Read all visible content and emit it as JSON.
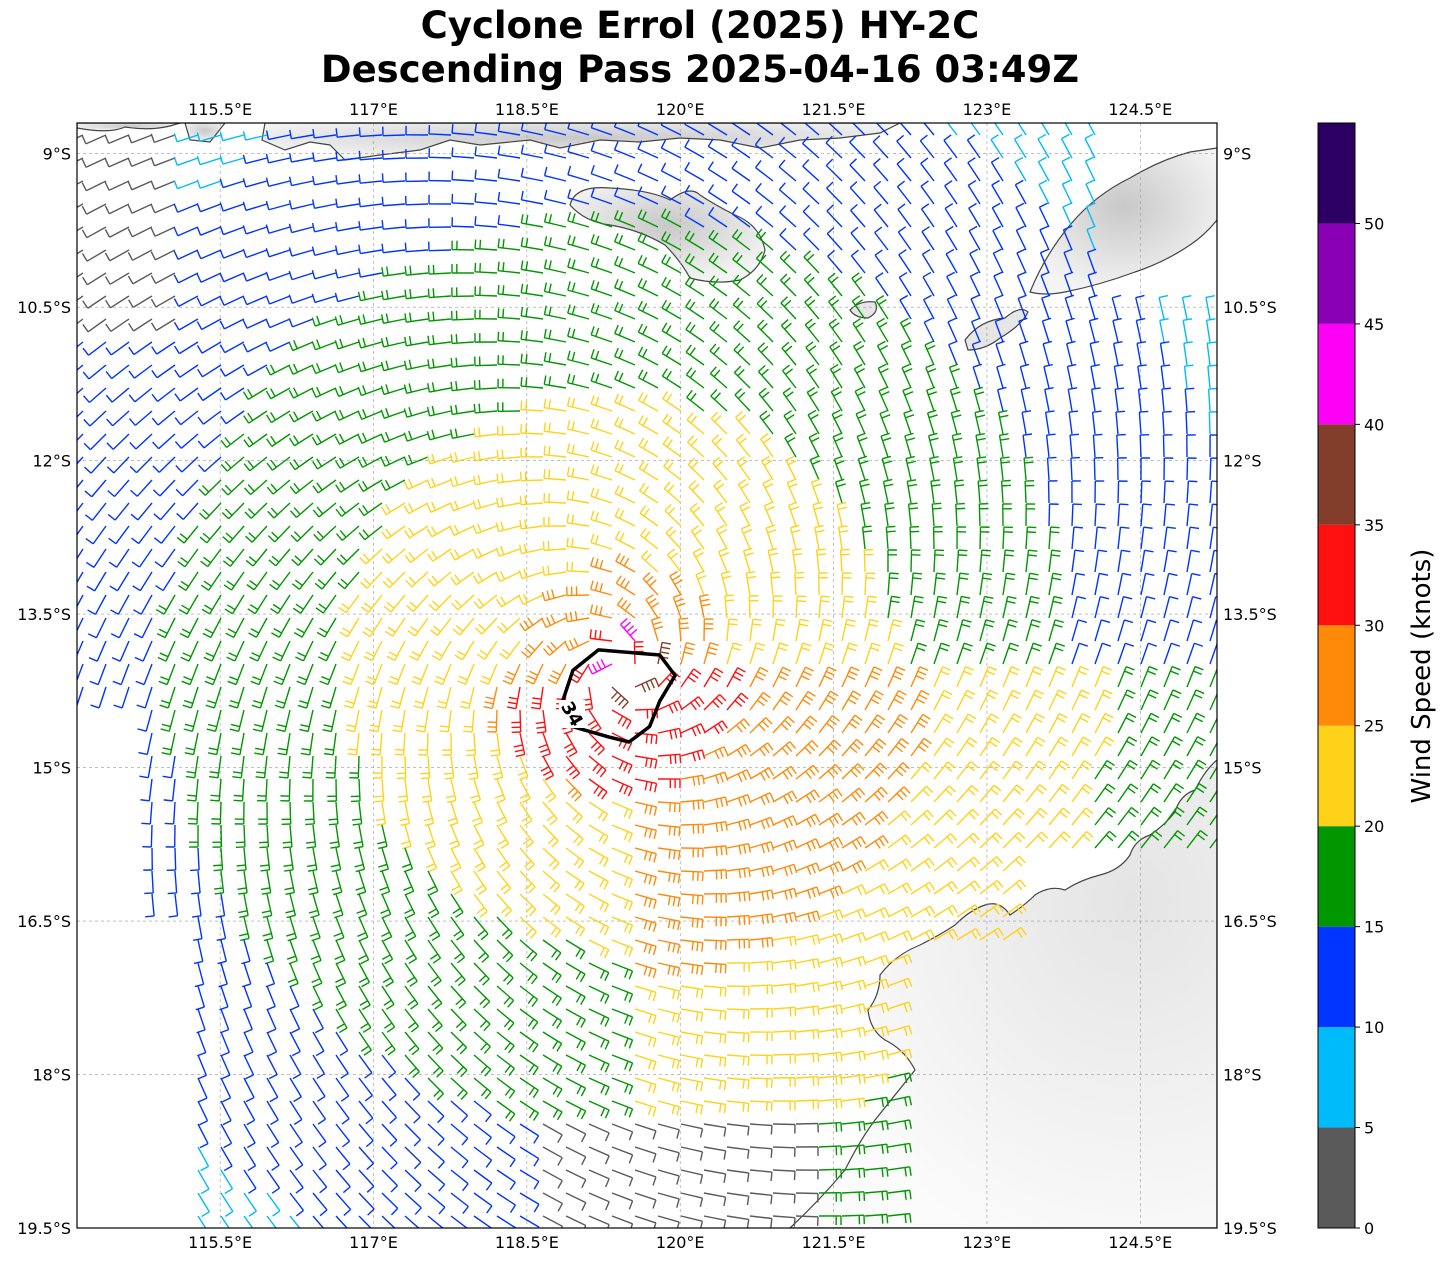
{
  "title": {
    "line1": "Cyclone Errol (2025) HY-2C",
    "line2": "Descending Pass 2025-04-16 03:49Z"
  },
  "map": {
    "lon_range": [
      114.1,
      125.25
    ],
    "lat_range": [
      -19.5,
      -8.7
    ],
    "lon_ticks": [
      {
        "value": 115.5,
        "label": "115.5°E"
      },
      {
        "value": 117,
        "label": "117°E"
      },
      {
        "value": 118.5,
        "label": "118.5°E"
      },
      {
        "value": 120,
        "label": "120°E"
      },
      {
        "value": 121.5,
        "label": "121.5°E"
      },
      {
        "value": 123,
        "label": "123°E"
      },
      {
        "value": 124.5,
        "label": "124.5°E"
      }
    ],
    "lat_ticks": [
      {
        "value": -9,
        "label": "9°S"
      },
      {
        "value": -10.5,
        "label": "10.5°S"
      },
      {
        "value": -12,
        "label": "12°S"
      },
      {
        "value": -13.5,
        "label": "13.5°S"
      },
      {
        "value": -15,
        "label": "15°S"
      },
      {
        "value": -16.5,
        "label": "16.5°S"
      },
      {
        "value": -18,
        "label": "18°S"
      },
      {
        "value": -19.5,
        "label": "19.5°S"
      }
    ],
    "gridlines": true,
    "storm_center": {
      "lon": 119.4,
      "lat": -14.05
    },
    "contour_34kt_label": "34",
    "contour_34kt_ring": [
      [
        119.2,
        -13.85
      ],
      [
        119.8,
        -13.9
      ],
      [
        119.95,
        -14.1
      ],
      [
        119.8,
        -14.35
      ],
      [
        119.7,
        -14.6
      ],
      [
        119.5,
        -14.75
      ],
      [
        119.3,
        -14.7
      ],
      [
        118.95,
        -14.6
      ],
      [
        118.85,
        -14.35
      ],
      [
        118.95,
        -14.05
      ],
      [
        119.2,
        -13.85
      ]
    ]
  },
  "colorbar": {
    "title": "Wind Speed (knots)",
    "bins": [
      {
        "min": 0,
        "max": 5,
        "color": "#5a5a5a"
      },
      {
        "min": 5,
        "max": 10,
        "color": "#00bbf9"
      },
      {
        "min": 10,
        "max": 15,
        "color": "#0034ff"
      },
      {
        "min": 15,
        "max": 20,
        "color": "#009700"
      },
      {
        "min": 20,
        "max": 25,
        "color": "#ffd21a"
      },
      {
        "min": 25,
        "max": 30,
        "color": "#ff8a0a"
      },
      {
        "min": 30,
        "max": 35,
        "color": "#ff1010"
      },
      {
        "min": 35,
        "max": 40,
        "color": "#823e2a"
      },
      {
        "min": 40,
        "max": 45,
        "color": "#ff00f6"
      },
      {
        "min": 45,
        "max": 50,
        "color": "#8a00b5"
      },
      {
        "min": 50,
        "max": 55,
        "color": "#2c0063"
      }
    ],
    "tick_labels": [
      "0",
      "5",
      "10",
      "15",
      "20",
      "25",
      "30",
      "35",
      "40",
      "45",
      "50"
    ],
    "range": [
      0,
      55
    ]
  }
}
